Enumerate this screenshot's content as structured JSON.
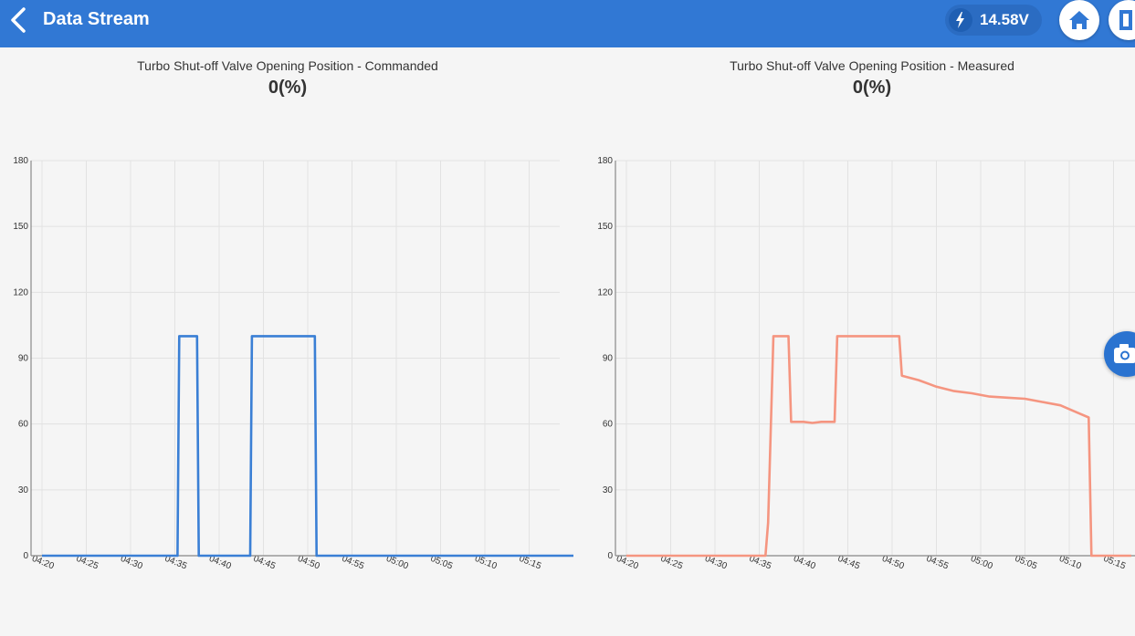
{
  "header": {
    "title": "Data Stream",
    "voltage": "14.58V",
    "icons": {
      "back": "chevron-left-icon",
      "voltage": "lightning-bolt-icon",
      "home": "home-icon",
      "exit": "exit-door-icon",
      "camera": "camera-icon"
    }
  },
  "panels": [
    {
      "title": "Turbo Shut-off Valve Opening Position  -  Commanded",
      "value": "0(%)"
    },
    {
      "title": "Turbo Shut-off Valve Opening Position  -  Measured",
      "value": "0(%)"
    }
  ],
  "chart_data": [
    {
      "type": "line",
      "title": "Turbo Shut-off Valve Opening Position  -  Commanded",
      "color": "#3a7fd5",
      "ylim": [
        0,
        180
      ],
      "yticks": [
        "0",
        "30",
        "60",
        "90",
        "120",
        "150",
        "180"
      ],
      "xticks": [
        "04:20",
        "04:25",
        "04:30",
        "04:35",
        "04:40",
        "04:45",
        "04:50",
        "04:55",
        "05:00",
        "05:05",
        "05:10",
        "05:15"
      ],
      "xlim": [
        260,
        320
      ],
      "grid": true,
      "points": [
        [
          260,
          0
        ],
        [
          275.3,
          0
        ],
        [
          275.5,
          100
        ],
        [
          277.5,
          100
        ],
        [
          277.7,
          0
        ],
        [
          283.5,
          0
        ],
        [
          283.7,
          100
        ],
        [
          290.8,
          100
        ],
        [
          291.0,
          0
        ],
        [
          320,
          0
        ]
      ]
    },
    {
      "type": "line",
      "title": "Turbo Shut-off Valve Opening Position  -  Measured",
      "color": "#f59580",
      "ylim": [
        0,
        180
      ],
      "yticks": [
        "0",
        "30",
        "60",
        "90",
        "120",
        "150",
        "180"
      ],
      "xticks": [
        "04:20",
        "04:25",
        "04:30",
        "04:35",
        "04:40",
        "04:45",
        "04:50",
        "04:55",
        "05:00",
        "05:05",
        "05:10",
        "05:15"
      ],
      "xlim": [
        260,
        317
      ],
      "grid": true,
      "points": [
        [
          260,
          0
        ],
        [
          275.7,
          0
        ],
        [
          276.0,
          15
        ],
        [
          276.6,
          100
        ],
        [
          278.3,
          100
        ],
        [
          278.6,
          61
        ],
        [
          280,
          61
        ],
        [
          281,
          60.5
        ],
        [
          282,
          61
        ],
        [
          283.5,
          61
        ],
        [
          283.8,
          100
        ],
        [
          286,
          100
        ],
        [
          288,
          100
        ],
        [
          290.8,
          100
        ],
        [
          291.1,
          82
        ],
        [
          293,
          80
        ],
        [
          295,
          77
        ],
        [
          297,
          75
        ],
        [
          299,
          74
        ],
        [
          301,
          72.5
        ],
        [
          303,
          72
        ],
        [
          305,
          71.5
        ],
        [
          307,
          70
        ],
        [
          309,
          68.5
        ],
        [
          311,
          65
        ],
        [
          312.2,
          63
        ],
        [
          312.5,
          0
        ],
        [
          317,
          0
        ]
      ]
    }
  ]
}
